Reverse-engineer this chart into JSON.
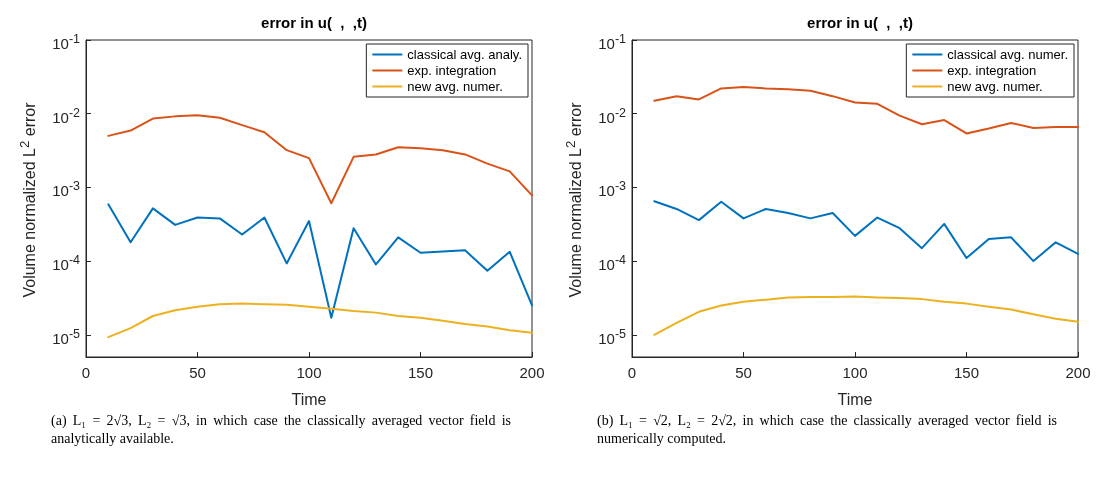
{
  "chart_data": [
    {
      "type": "line",
      "title": "error in u(  ,  ,t)",
      "xlabel": "Time",
      "ylabel": "Volume normalized L$^{2}$ error",
      "annotations": [
        "(a) L₁ = 2√3, L₂ = √3, in which case the classically averaged vector field is analytically available."
      ],
      "log": "y",
      "legend": "top right",
      "marker": "none",
      "x": [
        10,
        20,
        30,
        40,
        50,
        60,
        70,
        80,
        90,
        100,
        110,
        120,
        130,
        140,
        150,
        160,
        170,
        180,
        190,
        200
      ],
      "xlim": [
        0,
        200
      ],
      "xticks": [
        0,
        50,
        100,
        150,
        200
      ],
      "ylim": [
        5e-06,
        0.1
      ],
      "yticks": [
        {
          "value": 1e-05,
          "label": "10$^{-5}$"
        },
        {
          "value": 0.0001,
          "label": "10$^{-4}$"
        },
        {
          "value": 0.001,
          "label": "10$^{-3}$"
        },
        {
          "value": 0.01,
          "label": "10$^{-2}$"
        },
        {
          "value": 0.1,
          "label": "10$^{-1}$"
        }
      ],
      "series": [
        {
          "name": "classical avg. analy.",
          "color": "#0072bd",
          "values": [
            0.00059,
            0.00018,
            0.00052,
            0.00031,
            0.00039,
            0.00038,
            0.00023,
            0.00039,
            9.3e-05,
            0.00035,
            1.7e-05,
            0.00028,
            9e-05,
            0.00021,
            0.00013,
            0.000135,
            0.00014,
            7.4e-05,
            0.000134,
            2.5e-05
          ]
        },
        {
          "name": "exp. integration",
          "color": "#d95319",
          "values": [
            0.005,
            0.0059,
            0.0086,
            0.0092,
            0.0095,
            0.0088,
            0.007,
            0.0056,
            0.0032,
            0.0025,
            0.00061,
            0.0026,
            0.0028,
            0.0035,
            0.0034,
            0.0032,
            0.0028,
            0.0021,
            0.00165,
            0.00078
          ]
        },
        {
          "name": "new avg. numer.",
          "color": "#edb120",
          "values": [
            9.3e-06,
            1.23e-05,
            1.8e-05,
            2.15e-05,
            2.4e-05,
            2.6e-05,
            2.65e-05,
            2.6e-05,
            2.55e-05,
            2.4e-05,
            2.25e-05,
            2.1e-05,
            2e-05,
            1.8e-05,
            1.7e-05,
            1.55e-05,
            1.4e-05,
            1.3e-05,
            1.15e-05,
            1.07e-05
          ]
        }
      ]
    },
    {
      "type": "line",
      "title": "error in u(  ,  ,t)",
      "xlabel": "Time",
      "ylabel": "Volume normalized L$^{2}$ error",
      "annotations": [
        "(b) L₁ = √2, L₂ = 2√2, in which case the classically averaged vector field is numerically computed."
      ],
      "log": "y",
      "legend": "top right",
      "marker": "none",
      "x": [
        10,
        20,
        30,
        40,
        50,
        60,
        70,
        80,
        90,
        100,
        110,
        120,
        130,
        140,
        150,
        160,
        170,
        180,
        190,
        200
      ],
      "xlim": [
        0,
        200
      ],
      "xticks": [
        0,
        50,
        100,
        150,
        200
      ],
      "ylim": [
        5e-06,
        0.1
      ],
      "yticks": [
        {
          "value": 1e-05,
          "label": "10$^{-5}$"
        },
        {
          "value": 0.0001,
          "label": "10$^{-4}$"
        },
        {
          "value": 0.001,
          "label": "10$^{-3}$"
        },
        {
          "value": 0.01,
          "label": "10$^{-2}$"
        },
        {
          "value": 0.1,
          "label": "10$^{-1}$"
        }
      ],
      "series": [
        {
          "name": "classical avg. numer.",
          "color": "#0072bd",
          "values": [
            0.00065,
            0.00051,
            0.00036,
            0.00064,
            0.00038,
            0.00051,
            0.00045,
            0.00038,
            0.00045,
            0.00022,
            0.00039,
            0.00028,
            0.00015,
            0.00032,
            0.00011,
            0.0002,
            0.00021,
            0.0001,
            0.00018,
            0.000125
          ]
        },
        {
          "name": "exp. integration",
          "color": "#d95319",
          "values": [
            0.015,
            0.0173,
            0.0156,
            0.022,
            0.023,
            0.022,
            0.0215,
            0.0205,
            0.0173,
            0.0142,
            0.0136,
            0.0094,
            0.0072,
            0.0082,
            0.0054,
            0.0063,
            0.0075,
            0.0064,
            0.0066,
            0.0066
          ]
        },
        {
          "name": "new avg. numer.",
          "color": "#edb120",
          "values": [
            1e-05,
            1.45e-05,
            2.05e-05,
            2.5e-05,
            2.8e-05,
            3e-05,
            3.2e-05,
            3.25e-05,
            3.25e-05,
            3.3e-05,
            3.2e-05,
            3.15e-05,
            3.05e-05,
            2.8e-05,
            2.65e-05,
            2.4e-05,
            2.2e-05,
            1.9e-05,
            1.65e-05,
            1.5e-05
          ]
        }
      ]
    }
  ]
}
